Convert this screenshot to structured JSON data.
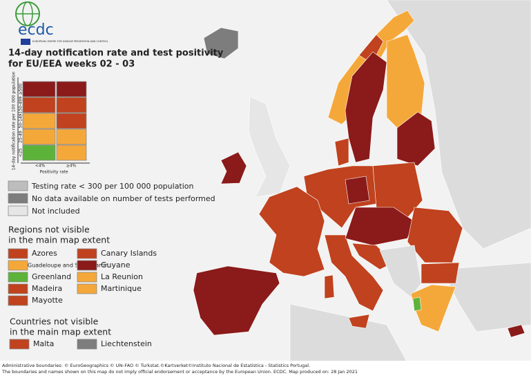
{
  "logo": {
    "name": "ecdc",
    "subtitle": "EUROPEAN CENTRE FOR DISEASE PREVENTION AND CONTROL"
  },
  "title": [
    "14-day notification rate and test positivity",
    "for EU/EEA weeks 02 - 03"
  ],
  "matrix": {
    "y_label": "14-day notification rate per 100 000 population",
    "rows": [
      "≥500",
      "150-499",
      "50-149",
      "25-49",
      "<25"
    ],
    "x_label": "Positivity rate",
    "columns": [
      "<4%",
      "≥4%"
    ]
  },
  "legend": [
    "Testing rate < 300 per 100 000 population",
    "No data available on number of tests performed",
    "Not included"
  ],
  "regions": {
    "title": [
      "Regions not visible",
      "in the main map extent"
    ],
    "items": [
      "Azores",
      "Guadeloupe and Saint Martin",
      "Greenland",
      "Madeira",
      "Mayotte",
      "Canary Islands",
      "Guyane",
      "La Reunion",
      "Martinique"
    ]
  },
  "countries": {
    "title": [
      "Countries not visible",
      "in the main map extent"
    ],
    "items": [
      "Malta",
      "Liechtenstein"
    ]
  },
  "footer": [
    "Administrative boundaries: © EuroGeographics © UN–FAO © Turkstat.©Kartverket©Instituto Nacional de Estatística - Statistics Portugal.",
    "The boundaries and names shown on this map do not imply official endorsement or acceptance by the European Union. ECDC. Map produced on: 28 Jan 2021"
  ]
}
